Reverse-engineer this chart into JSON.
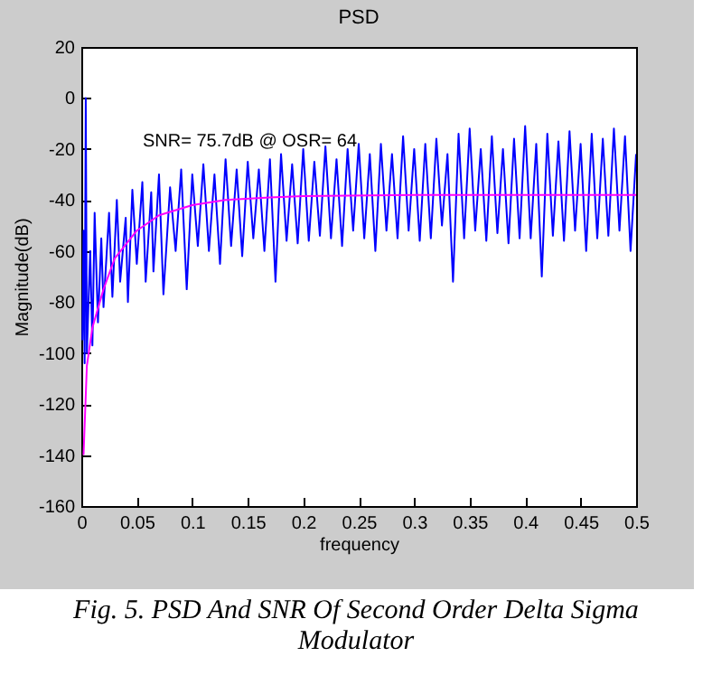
{
  "chart_data": {
    "type": "line",
    "title": "PSD",
    "xlabel": "frequency",
    "ylabel": "Magnitude(dB)",
    "annotations": [
      "SNR= 75.7dB @ OSR= 64",
      "Fig. 5. PSD And SNR Of Second Order Delta Sigma Modulator"
    ],
    "xlim": [
      0,
      0.5
    ],
    "xticks": [
      0,
      0.05,
      0.1,
      0.15,
      0.2,
      0.25,
      0.3,
      0.35,
      0.4,
      0.45,
      0.5
    ],
    "ylim": [
      -160,
      20
    ],
    "yticks": [
      -160,
      -140,
      -120,
      -100,
      -80,
      -60,
      -40,
      -20,
      0,
      20
    ],
    "grid": false,
    "series": [
      {
        "color": "#0000ff",
        "x": [
          0.001,
          0.002,
          0.003,
          0.004,
          0.005,
          0.008,
          0.01,
          0.012,
          0.015,
          0.018,
          0.02,
          0.025,
          0.028,
          0.032,
          0.035,
          0.04,
          0.042,
          0.046,
          0.05,
          0.055,
          0.058,
          0.063,
          0.065,
          0.07,
          0.074,
          0.08,
          0.085,
          0.09,
          0.095,
          0.1,
          0.105,
          0.11,
          0.115,
          0.12,
          0.125,
          0.13,
          0.135,
          0.14,
          0.145,
          0.15,
          0.155,
          0.16,
          0.165,
          0.17,
          0.175,
          0.18,
          0.185,
          0.19,
          0.195,
          0.2,
          0.205,
          0.21,
          0.215,
          0.22,
          0.225,
          0.23,
          0.235,
          0.24,
          0.245,
          0.25,
          0.255,
          0.26,
          0.265,
          0.27,
          0.275,
          0.28,
          0.285,
          0.29,
          0.295,
          0.3,
          0.305,
          0.31,
          0.315,
          0.32,
          0.325,
          0.33,
          0.335,
          0.34,
          0.345,
          0.35,
          0.355,
          0.36,
          0.365,
          0.37,
          0.375,
          0.38,
          0.385,
          0.39,
          0.395,
          0.4,
          0.405,
          0.41,
          0.415,
          0.42,
          0.425,
          0.43,
          0.435,
          0.44,
          0.445,
          0.45,
          0.455,
          0.46,
          0.465,
          0.47,
          0.475,
          0.48,
          0.485,
          0.49,
          0.495,
          0.5
        ],
        "values": [
          -95,
          -52,
          -104,
          0,
          -100,
          -60,
          -97,
          -45,
          -88,
          -55,
          -82,
          -45,
          -78,
          -40,
          -72,
          -47,
          -80,
          -36,
          -65,
          -33,
          -72,
          -37,
          -68,
          -30,
          -77,
          -35,
          -60,
          -28,
          -75,
          -30,
          -58,
          -26,
          -60,
          -30,
          -65,
          -24,
          -58,
          -28,
          -62,
          -25,
          -55,
          -28,
          -60,
          -24,
          -72,
          -22,
          -56,
          -26,
          -57,
          -20,
          -56,
          -25,
          -54,
          -19,
          -55,
          -24,
          -58,
          -20,
          -52,
          -18,
          -55,
          -22,
          -60,
          -18,
          -52,
          -22,
          -55,
          -15,
          -52,
          -20,
          -56,
          -18,
          -55,
          -16,
          -50,
          -22,
          -72,
          -14,
          -55,
          -12,
          -52,
          -20,
          -56,
          -15,
          -53,
          -20,
          -57,
          -16,
          -55,
          -11,
          -55,
          -18,
          -70,
          -14,
          -54,
          -17,
          -56,
          -13,
          -52,
          -18,
          -60,
          -14,
          -55,
          -16,
          -54,
          -12,
          -52,
          -15,
          -60,
          -22
        ]
      },
      {
        "color": "#ff00ff",
        "x": [
          0.002,
          0.005,
          0.01,
          0.02,
          0.03,
          0.05,
          0.07,
          0.1,
          0.13,
          0.17,
          0.2,
          0.3,
          0.5
        ],
        "values": [
          -140,
          -105,
          -90,
          -75,
          -63,
          -52,
          -46,
          -42,
          -40,
          -39,
          -38.5,
          -38,
          -38
        ]
      }
    ]
  }
}
